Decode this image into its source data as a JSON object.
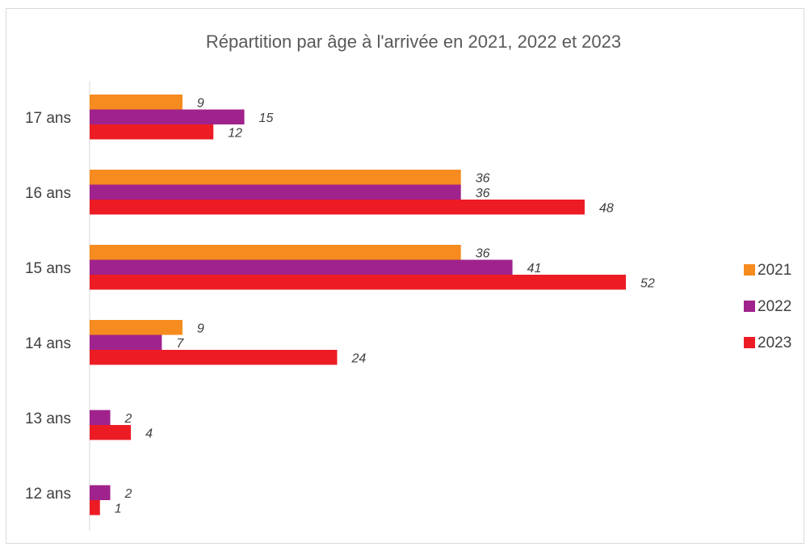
{
  "chart_data": {
    "type": "bar",
    "orientation": "horizontal",
    "title": "Répartition par âge à l'arrivée en 2021, 2022 et 2023",
    "categories": [
      "17 ans",
      "16 ans",
      "15 ans",
      "14 ans",
      "13 ans",
      "12 ans"
    ],
    "series": [
      {
        "name": "2021",
        "color": "#F68B1F",
        "values": [
          9,
          36,
          36,
          9,
          null,
          null
        ]
      },
      {
        "name": "2022",
        "color": "#A0228C",
        "values": [
          15,
          36,
          41,
          7,
          2,
          2
        ]
      },
      {
        "name": "2023",
        "color": "#ED1C24",
        "values": [
          12,
          48,
          52,
          24,
          4,
          1
        ]
      }
    ],
    "xlim": [
      0,
      60
    ],
    "grid": false,
    "data_labels": true,
    "legend_position": "right"
  }
}
